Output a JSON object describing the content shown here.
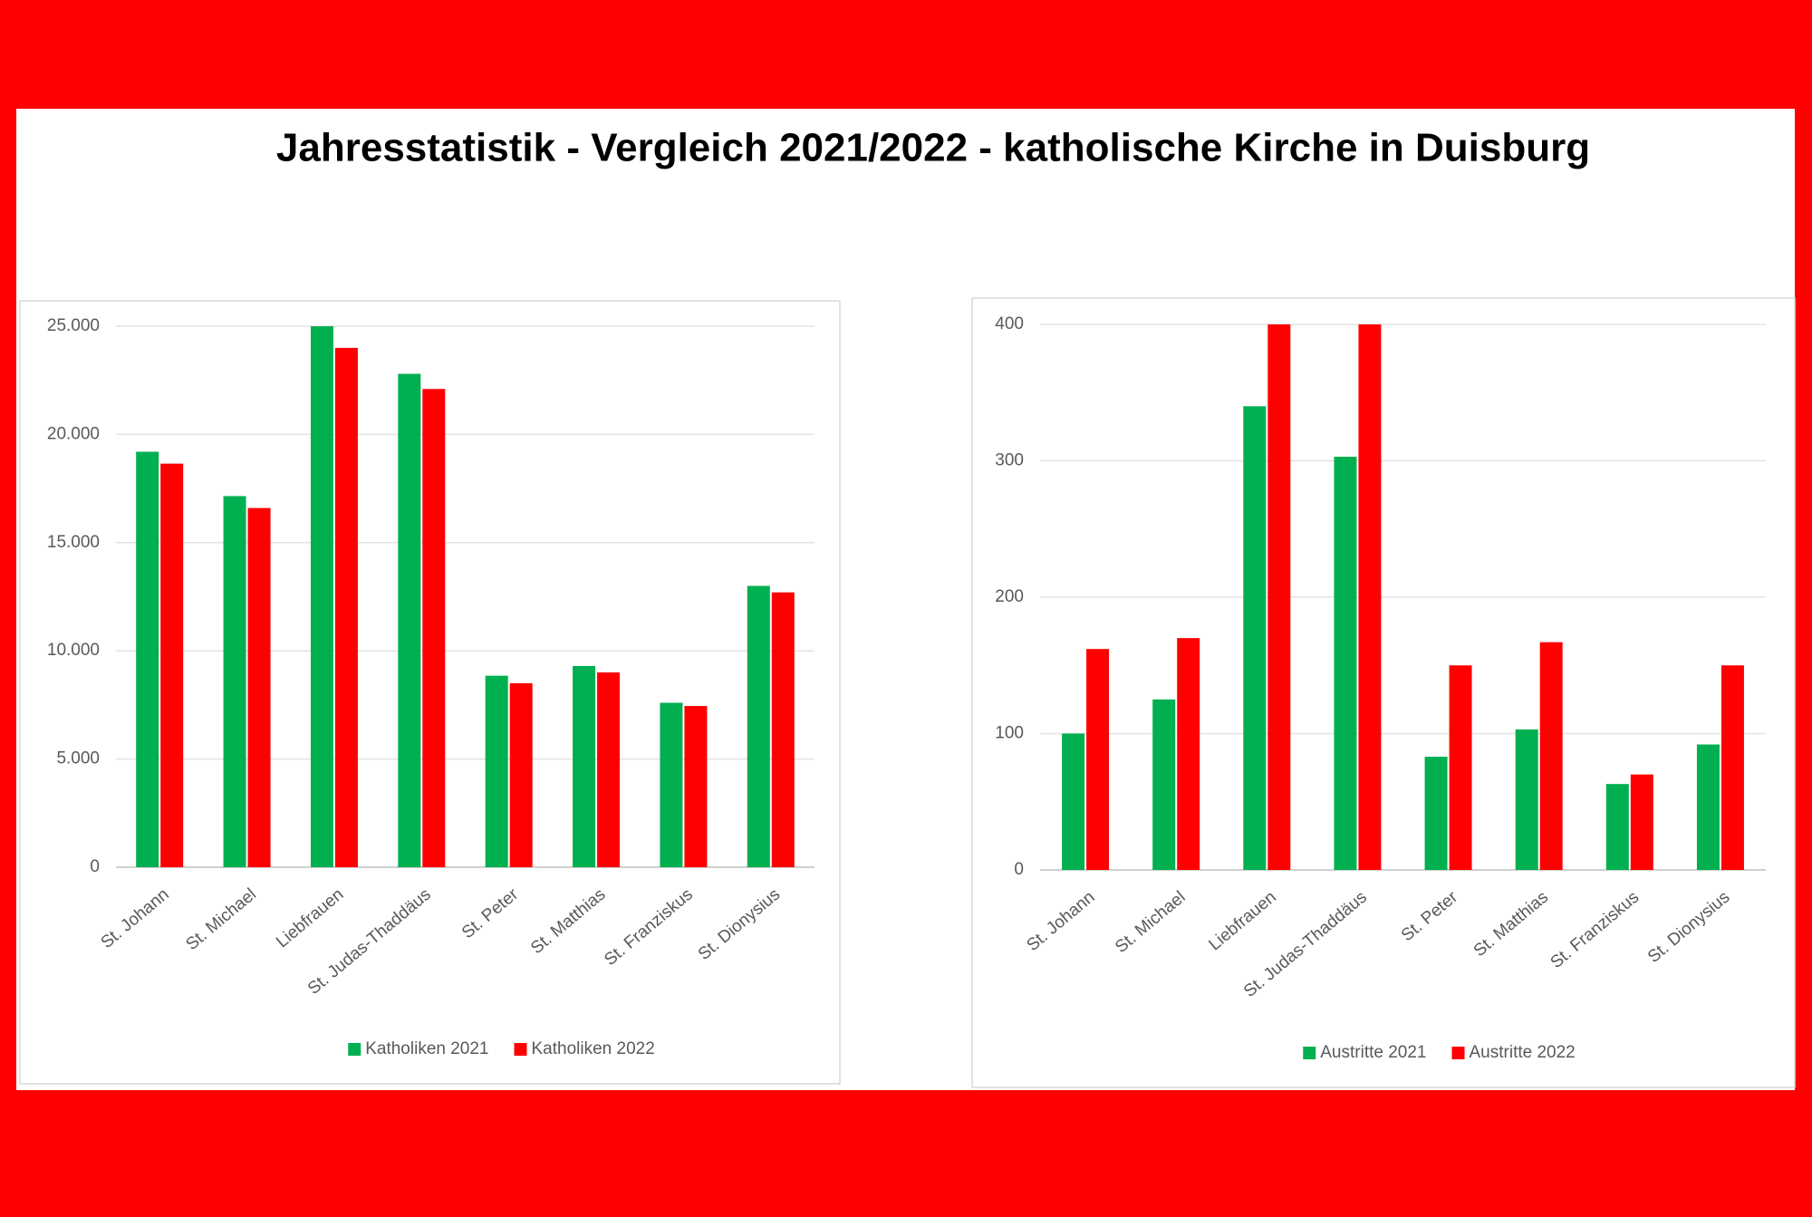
{
  "title": "Jahresstatistik - Vergleich 2021/2022 - katholische Kirche in Duisburg",
  "chart_data": [
    {
      "type": "bar",
      "categories": [
        "St. Johann",
        "St. Michael",
        "Liebfrauen",
        "St. Judas-Thaddäus",
        "St. Peter",
        "St. Matthias",
        "St. Franziskus",
        "St. Dionysius"
      ],
      "series": [
        {
          "name": "Katholiken 2021",
          "color": "#00b050",
          "values": [
            19200,
            17150,
            25000,
            22800,
            8850,
            9300,
            7600,
            13000
          ]
        },
        {
          "name": "Katholiken 2022",
          "color": "#ff0000",
          "values": [
            18650,
            16600,
            24000,
            22100,
            8500,
            9000,
            7450,
            12700
          ]
        }
      ],
      "ylim": [
        0,
        25000
      ],
      "yticks": [
        0,
        {
          "value": 5000,
          "label": "5.000"
        },
        {
          "value": 10000,
          "label": "10.000"
        },
        {
          "value": 15000,
          "label": "15.000"
        },
        {
          "value": 20000,
          "label": "20.000"
        },
        {
          "value": 25000,
          "label": "25.000"
        }
      ],
      "grid": true,
      "legend": "bottom"
    },
    {
      "type": "bar",
      "categories": [
        "St. Johann",
        "St. Michael",
        "Liebfrauen",
        "St. Judas-Thaddäus",
        "St. Peter",
        "St. Matthias",
        "St. Franziskus",
        "St. Dionysius"
      ],
      "series": [
        {
          "name": "Austritte 2021",
          "color": "#00b050",
          "values": [
            100,
            125,
            340,
            303,
            83,
            103,
            63,
            92
          ]
        },
        {
          "name": "Austritte 2022",
          "color": "#ff0000",
          "values": [
            162,
            170,
            400,
            400,
            150,
            167,
            70,
            150
          ]
        }
      ],
      "ylim": [
        0,
        400
      ],
      "yticks": [
        0,
        100,
        200,
        300,
        400
      ],
      "grid": true,
      "legend": "bottom"
    }
  ]
}
